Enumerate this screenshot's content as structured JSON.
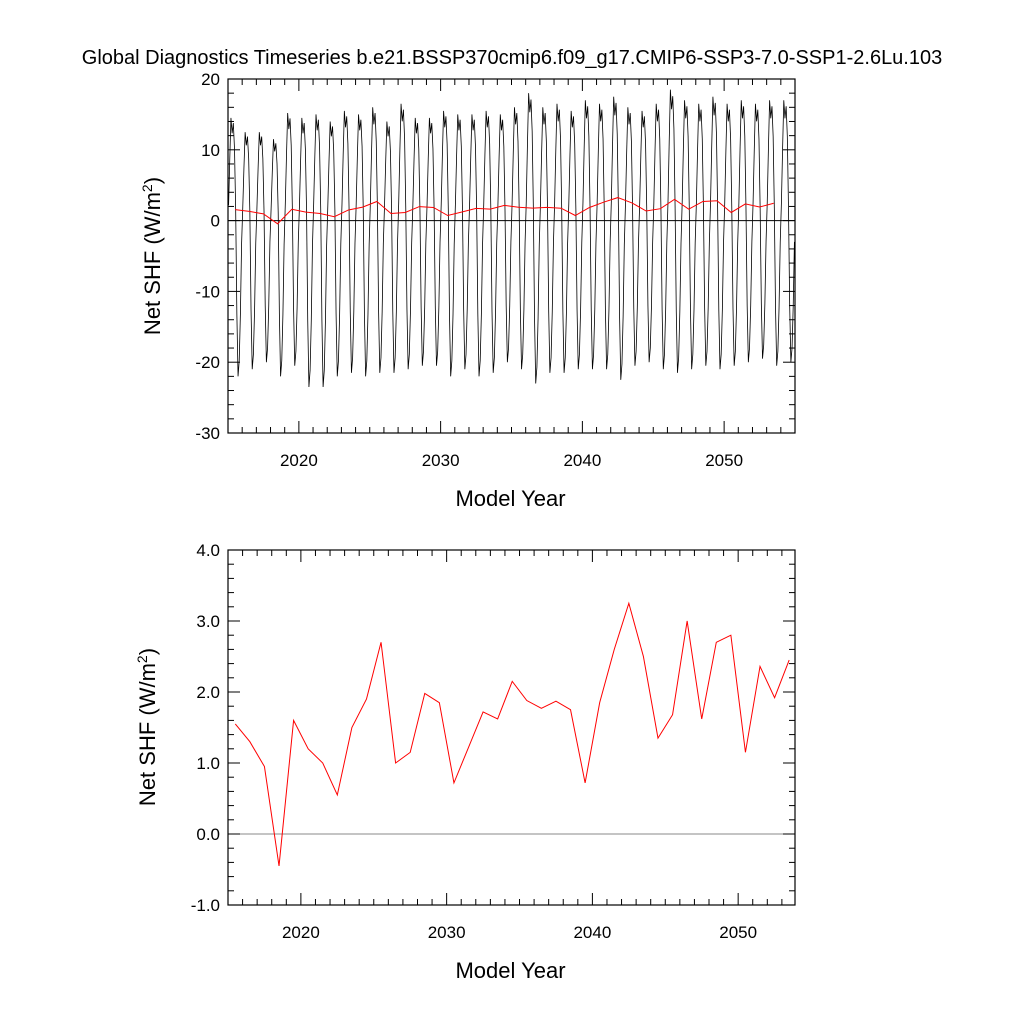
{
  "title": "Global Diagnostics Timeseries b.e21.BSSP370cmip6.f09_g17.CMIP6-SSP3-7.0-SSP1-2.6Lu.103",
  "chart_data": [
    {
      "type": "line",
      "xlabel": "Model Year",
      "ylabel_main": "Net SHF (W/m",
      "ylabel_sup": "2",
      "ylabel_tail": ")",
      "xlim": [
        2015,
        2055
      ],
      "ylim": [
        -30,
        20
      ],
      "xticks": [
        2020,
        2030,
        2040,
        2050
      ],
      "xtick_labels": [
        "2020",
        "2030",
        "2040",
        "2050"
      ],
      "yticks": [
        -30,
        -20,
        -10,
        0,
        10,
        20
      ],
      "ytick_labels": [
        "-30",
        "-20",
        "-10",
        "0",
        "10",
        "20"
      ],
      "reference_line": 0,
      "colors": {
        "monthly": "#000000",
        "annual": "#ff0000",
        "reference": "#000000"
      },
      "monthly": {
        "start_year": 2015,
        "annual_max": [
          14.5,
          12.5,
          12.5,
          11.5,
          15.2,
          14.5,
          15.0,
          14.0,
          15.5,
          15.0,
          16.0,
          14.0,
          16.5,
          14.5,
          14.5,
          15.5,
          15.0,
          15.0,
          15.5,
          15.0,
          16.0,
          18.0,
          16.0,
          16.5,
          15.5,
          17.0,
          16.5,
          17.5,
          16.0,
          15.5,
          16.5,
          18.5,
          17.0,
          16.5,
          17.5,
          16.5,
          17.0,
          16.5,
          17.0,
          17.0
        ],
        "annual_min": [
          -22.0,
          -21.0,
          -20.0,
          -22.0,
          -20.5,
          -23.5,
          -23.5,
          -22.0,
          -21.5,
          -22.0,
          -21.5,
          -21.5,
          -21.0,
          -20.5,
          -20.5,
          -22.0,
          -21.0,
          -22.0,
          -21.5,
          -20.0,
          -21.0,
          -23.0,
          -21.5,
          -21.5,
          -21.0,
          -21.0,
          -21.0,
          -22.5,
          -20.5,
          -20.0,
          -21.0,
          -21.5,
          -21.0,
          -20.5,
          -21.0,
          -20.5,
          -20.0,
          -19.5,
          -20.5,
          -20.0
        ]
      },
      "annual": {
        "x": [
          2015.5,
          2016.5,
          2017.5,
          2018.5,
          2019.5,
          2020.5,
          2021.5,
          2022.5,
          2023.5,
          2024.5,
          2025.5,
          2026.5,
          2027.5,
          2028.5,
          2029.5,
          2030.5,
          2031.5,
          2032.5,
          2033.5,
          2034.5,
          2035.5,
          2036.5,
          2037.5,
          2038.5,
          2039.5,
          2040.5,
          2041.5,
          2042.5,
          2043.5,
          2044.5,
          2045.5,
          2046.5,
          2047.5,
          2048.5,
          2049.5,
          2050.5,
          2051.5,
          2052.5,
          2053.5
        ],
        "y": [
          1.55,
          1.3,
          0.95,
          -0.45,
          1.6,
          1.2,
          1.0,
          0.55,
          1.5,
          1.9,
          2.7,
          1.0,
          1.15,
          1.98,
          1.85,
          0.72,
          1.22,
          1.72,
          1.62,
          2.15,
          1.88,
          1.77,
          1.87,
          1.75,
          0.72,
          1.85,
          2.6,
          3.25,
          2.5,
          1.35,
          1.68,
          3.0,
          1.62,
          2.7,
          2.8,
          1.15,
          2.36,
          1.92,
          2.45
        ]
      }
    },
    {
      "type": "line",
      "xlabel": "Model Year",
      "ylabel_main": "Net SHF (W/m",
      "ylabel_sup": "2",
      "ylabel_tail": ")",
      "xlim": [
        2015,
        2053.9
      ],
      "ylim": [
        -1.0,
        4.0
      ],
      "xticks": [
        2020,
        2030,
        2040,
        2050
      ],
      "xtick_labels": [
        "2020",
        "2030",
        "2040",
        "2050"
      ],
      "yticks": [
        -1.0,
        0.0,
        1.0,
        2.0,
        3.0,
        4.0
      ],
      "ytick_labels": [
        "-1.0",
        "0.0",
        "1.0",
        "2.0",
        "3.0",
        "4.0"
      ],
      "reference_line": 0,
      "colors": {
        "annual": "#ff0000",
        "reference": "#888888"
      },
      "annual": {
        "x": [
          2015.5,
          2016.5,
          2017.5,
          2018.5,
          2019.5,
          2020.5,
          2021.5,
          2022.5,
          2023.5,
          2024.5,
          2025.5,
          2026.5,
          2027.5,
          2028.5,
          2029.5,
          2030.5,
          2031.5,
          2032.5,
          2033.5,
          2034.5,
          2035.5,
          2036.5,
          2037.5,
          2038.5,
          2039.5,
          2040.5,
          2041.5,
          2042.5,
          2043.5,
          2044.5,
          2045.5,
          2046.5,
          2047.5,
          2048.5,
          2049.5,
          2050.5,
          2051.5,
          2052.5,
          2053.5
        ],
        "y": [
          1.55,
          1.3,
          0.95,
          -0.45,
          1.6,
          1.2,
          1.0,
          0.55,
          1.5,
          1.9,
          2.7,
          1.0,
          1.15,
          1.98,
          1.85,
          0.72,
          1.22,
          1.72,
          1.62,
          2.15,
          1.88,
          1.77,
          1.87,
          1.75,
          0.72,
          1.85,
          2.6,
          3.25,
          2.5,
          1.35,
          1.68,
          3.0,
          1.62,
          2.7,
          2.8,
          1.15,
          2.36,
          1.92,
          2.45
        ]
      }
    }
  ]
}
